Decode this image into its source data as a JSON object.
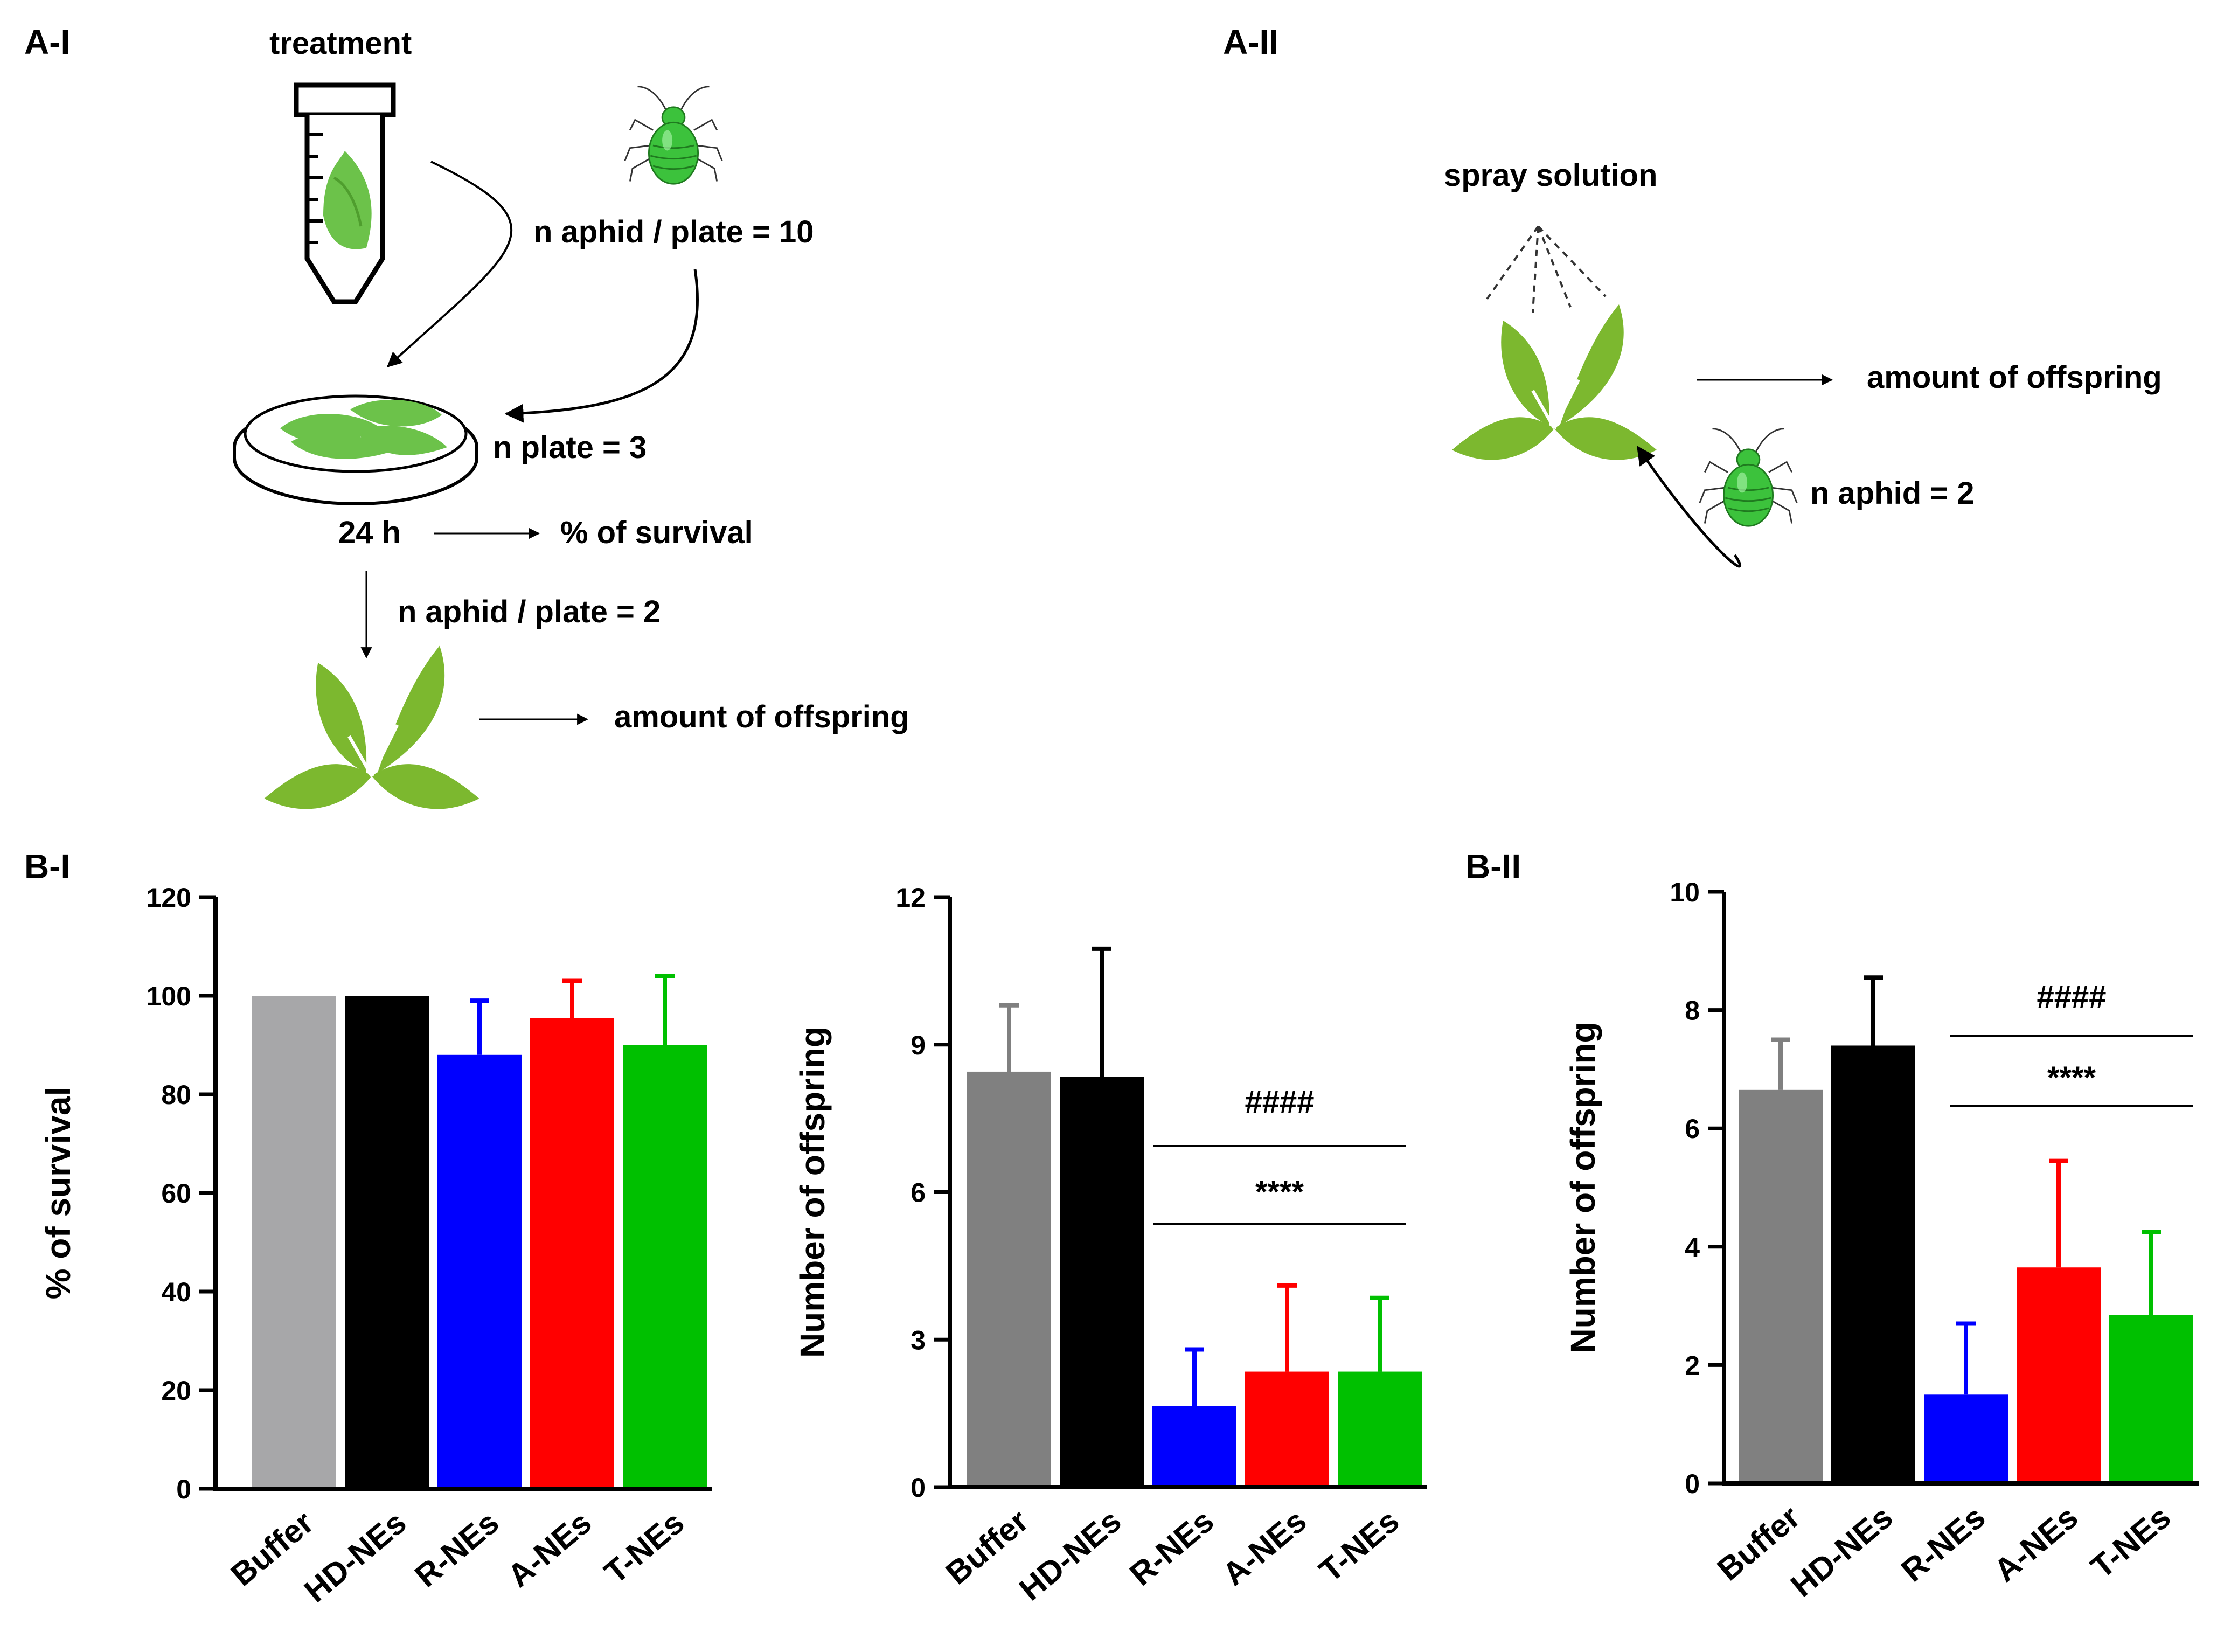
{
  "panels": {
    "a1": "A-I",
    "a2": "A-II",
    "b1": "B-I",
    "b2": "B-II"
  },
  "schematic_a1": {
    "treatment": "treatment",
    "n_aphid_plate_10": "n aphid / plate = 10",
    "n_plate": "n plate = 3",
    "time": "24 h",
    "survival": "% of survival",
    "n_aphid_plate_2": "n aphid / plate = 2",
    "offspring": "amount of offspring"
  },
  "schematic_a2": {
    "spray": "spray solution",
    "offspring": "amount of offspring",
    "n_aphid": "n aphid = 2"
  },
  "colors": {
    "leaf": "#7cb82f",
    "leaf_dark": "#5c9a1e",
    "aphid": "#3cc23c",
    "grey_light": "#a7a7a9",
    "grey": "#808080",
    "black": "#000000",
    "blue": "#0000ff",
    "red": "#ff0000",
    "green": "#00c000"
  },
  "chart_data": [
    {
      "type": "bar",
      "panel": "B-I",
      "ylabel": "% of survival",
      "ylim": [
        0,
        120
      ],
      "yticks": [
        0,
        20,
        40,
        60,
        80,
        100,
        120
      ],
      "categories": [
        "Buffer",
        "HD-NEs",
        "R-NEs",
        "A-NEs",
        "T-NEs"
      ],
      "values": [
        100,
        100,
        88,
        95.5,
        90
      ],
      "errors": [
        0,
        0,
        11,
        7.5,
        14
      ],
      "bar_colors": [
        "#a7a7a9",
        "#000000",
        "#0000ff",
        "#ff0000",
        "#00c000"
      ]
    },
    {
      "type": "bar",
      "panel": "B-I",
      "ylabel": "Number of offspring",
      "ylim": [
        0,
        12
      ],
      "yticks": [
        0,
        3,
        6,
        9,
        12
      ],
      "categories": [
        "Buffer",
        "HD-NEs",
        "R-NEs",
        "A-NEs",
        "T-NEs"
      ],
      "values": [
        8.45,
        8.35,
        1.65,
        2.35,
        2.35
      ],
      "errors": [
        1.35,
        2.6,
        1.15,
        1.75,
        1.5
      ],
      "bar_colors": [
        "#808080",
        "#000000",
        "#0000ff",
        "#ff0000",
        "#00c000"
      ],
      "annotations": {
        "hash": "####",
        "stars": "****"
      }
    },
    {
      "type": "bar",
      "panel": "B-II",
      "ylabel": "Number of offspring",
      "ylim": [
        0,
        10
      ],
      "yticks": [
        0,
        2,
        4,
        6,
        8,
        10
      ],
      "categories": [
        "Buffer",
        "HD-NEs",
        "R-NEs",
        "A-NEs",
        "T-NEs"
      ],
      "values": [
        6.65,
        7.4,
        1.5,
        3.65,
        2.85
      ],
      "errors": [
        0.85,
        1.15,
        1.2,
        1.8,
        1.4
      ],
      "bar_colors": [
        "#808080",
        "#000000",
        "#0000ff",
        "#ff0000",
        "#00c000"
      ],
      "annotations": {
        "hash": "####",
        "stars": "****"
      }
    }
  ]
}
